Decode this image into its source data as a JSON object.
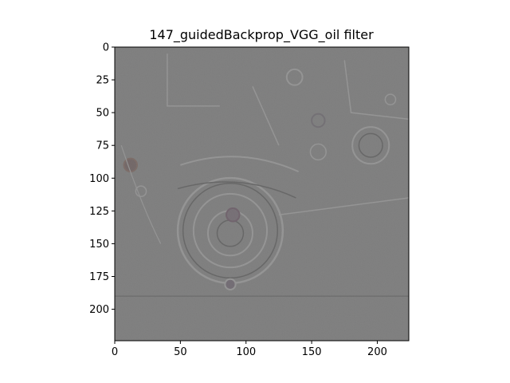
{
  "chart_data": {
    "type": "image",
    "title": "147_guidedBackprop_VGG_oil filter",
    "xlabel": "",
    "ylabel": "",
    "xlim": [
      0,
      224
    ],
    "ylim": [
      224,
      0
    ],
    "xticks": [
      0,
      50,
      100,
      150,
      200
    ],
    "yticks": [
      0,
      25,
      50,
      75,
      100,
      125,
      150,
      175,
      200
    ],
    "grid": false,
    "legend": "none",
    "image_background_color": "#7e7e7e",
    "outline_color": "#9a9a9a",
    "dark_accent_color": "#5e5e5e"
  }
}
